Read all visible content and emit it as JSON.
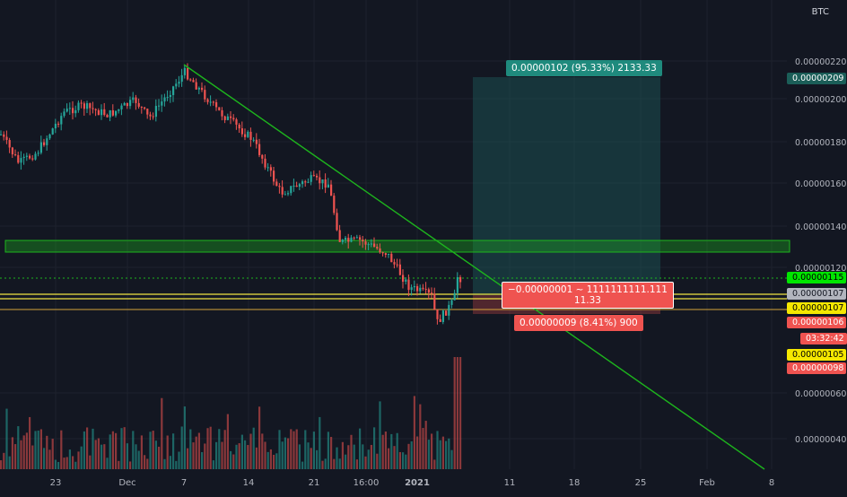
{
  "header": {
    "unit": "BTC"
  },
  "price_scale": {
    "ticks": [
      "0.00000220",
      "0.00000200",
      "0.00000180",
      "0.00000160",
      "0.00000140",
      "0.00000120",
      "0.00000060",
      "0.00000040"
    ],
    "markers": [
      {
        "text": "0.00000209",
        "bg": "#1b5e58",
        "fg": "#ffffff"
      },
      {
        "text": "0.00000115",
        "bg": "#00e500",
        "fg": "#000000"
      },
      {
        "text": "0.00000107",
        "bg": "#b2b5be",
        "fg": "#131722"
      },
      {
        "text": "0.00000107",
        "bg": "#f5e800",
        "fg": "#000000"
      },
      {
        "text": "0.00000106",
        "bg": "#ef5350",
        "fg": "#ffffff"
      },
      {
        "text": "03:32:42",
        "bg": "#ef5350",
        "fg": "#ffffff"
      },
      {
        "text": "0.00000105",
        "bg": "#f5e800",
        "fg": "#000000"
      },
      {
        "text": "0.00000098",
        "bg": "#ef5350",
        "fg": "#ffffff"
      }
    ]
  },
  "time_axis": {
    "labels": [
      "23",
      "Dec",
      "7",
      "14",
      "21",
      "16:00",
      "2021",
      "11",
      "18",
      "25",
      "Feb",
      "8"
    ]
  },
  "position": {
    "target_label": "0.00000102 (95.33%) 2133.33",
    "entry_label_1": "−0.00000001 ~ 1111111111.111",
    "entry_label_2": "11.33",
    "stop_label": "0.00000009 (8.41%) 900"
  },
  "colors": {
    "background": "#131722",
    "up": "#26a69a",
    "down": "#ef5350",
    "trendline": "#1db51d",
    "zone": "#1db51d",
    "level": "#f0e442"
  }
}
